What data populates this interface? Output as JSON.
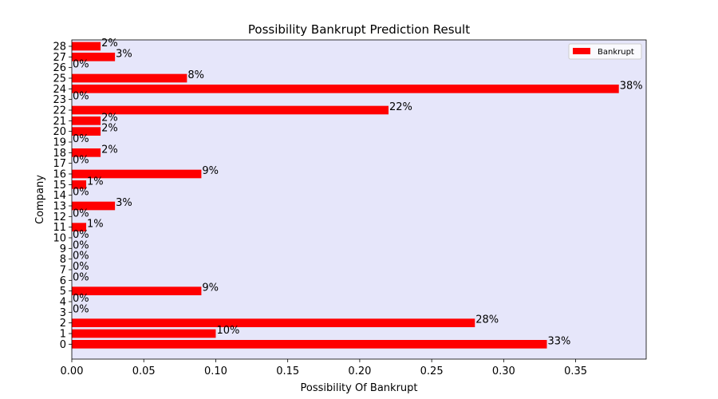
{
  "chart_data": {
    "type": "bar",
    "orientation": "horizontal",
    "title": "Possibility Bankrupt Prediction Result",
    "xlabel": "Possibility Of Bankrupt",
    "ylabel": "Company",
    "categories": [
      "0",
      "1",
      "2",
      "3",
      "4",
      "5",
      "6",
      "7",
      "8",
      "9",
      "10",
      "11",
      "12",
      "13",
      "14",
      "15",
      "16",
      "17",
      "18",
      "19",
      "20",
      "21",
      "22",
      "23",
      "24",
      "25",
      "26",
      "27",
      "28"
    ],
    "series": [
      {
        "name": "Bankrupt",
        "color": "#ff0000",
        "values": [
          0.33,
          0.1,
          0.28,
          0,
          0,
          0.09,
          0,
          0,
          0,
          0,
          0,
          0.01,
          0,
          0.03,
          0,
          0.01,
          0.09,
          0,
          0.02,
          0,
          0.02,
          0.02,
          0.22,
          0,
          0.38,
          0.08,
          0,
          0.03,
          0.02
        ],
        "labels": [
          "33%",
          "10%",
          "28%",
          "0%",
          "0%",
          "9%",
          "0%",
          "0%",
          "0%",
          "0%",
          "0%",
          "1%",
          "0%",
          "3%",
          "0%",
          "1%",
          "9%",
          "0%",
          "2%",
          "0%",
          "2%",
          "2%",
          "22%",
          "0%",
          "38%",
          "8%",
          "0%",
          "3%",
          "2%"
        ]
      }
    ],
    "xlim": [
      0,
      0.399
    ],
    "xticks": [
      "0.00",
      "0.05",
      "0.10",
      "0.15",
      "0.20",
      "0.25",
      "0.30",
      "0.35"
    ],
    "xtick_values": [
      0,
      0.05,
      0.1,
      0.15,
      0.2,
      0.25,
      0.3,
      0.35
    ],
    "plot_background": "#e6e6fa",
    "grid": false,
    "legend_position": "upper right"
  }
}
